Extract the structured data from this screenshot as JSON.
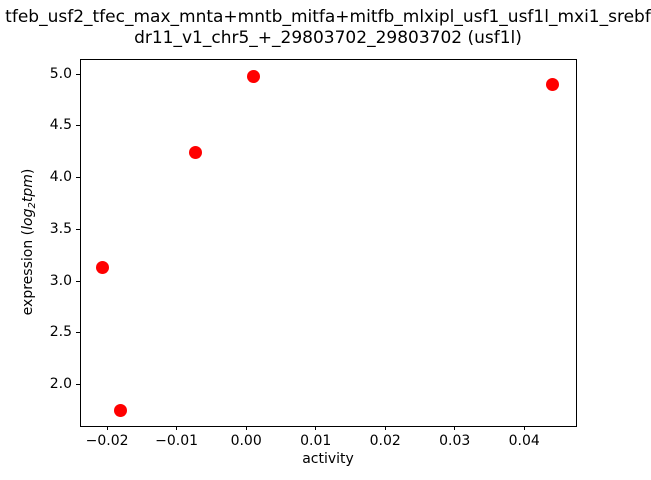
{
  "chart_data": {
    "type": "scatter",
    "title_line1": "tfeb_usf2_tfec_max_mnta+mntb_mitfa+mitfb_mlxipl_usf1_usf1l_mxi1_srebf",
    "title_line2": "dr11_v1_chr5_+_29803702_29803702 (usf1l)",
    "xlabel": "activity",
    "ylabel": {
      "prefix": "expression (",
      "math_word1": "log",
      "subscript": "2",
      "math_word2": "tpm",
      "suffix": ")"
    },
    "series": [
      {
        "name": "expression-vs-activity",
        "marker": "circle",
        "color": "#ff0000",
        "points": [
          {
            "x": -0.0206,
            "y": 3.13
          },
          {
            "x": -0.0181,
            "y": 1.75
          },
          {
            "x": -0.0073,
            "y": 4.24
          },
          {
            "x": 0.0011,
            "y": 4.98
          },
          {
            "x": 0.0441,
            "y": 4.9
          }
        ]
      }
    ],
    "xlim": [
      -0.0239,
      0.0473
    ],
    "ylim": [
      1.611,
      5.145
    ],
    "xticks": {
      "values": [
        -0.02,
        -0.01,
        0,
        0.01,
        0.02,
        0.03,
        0.04
      ],
      "labels": [
        "−0.02",
        "−0.01",
        "0.00",
        "0.01",
        "0.02",
        "0.03",
        "0.04"
      ]
    },
    "yticks": {
      "values": [
        2.0,
        2.5,
        3.0,
        3.5,
        4.0,
        4.5,
        5.0
      ],
      "labels": [
        "2.0",
        "2.5",
        "3.0",
        "3.5",
        "4.0",
        "4.5",
        "5.0"
      ]
    },
    "grid": false,
    "legend": "none",
    "axis_color": "#000000",
    "background_color": "#ffffff"
  }
}
